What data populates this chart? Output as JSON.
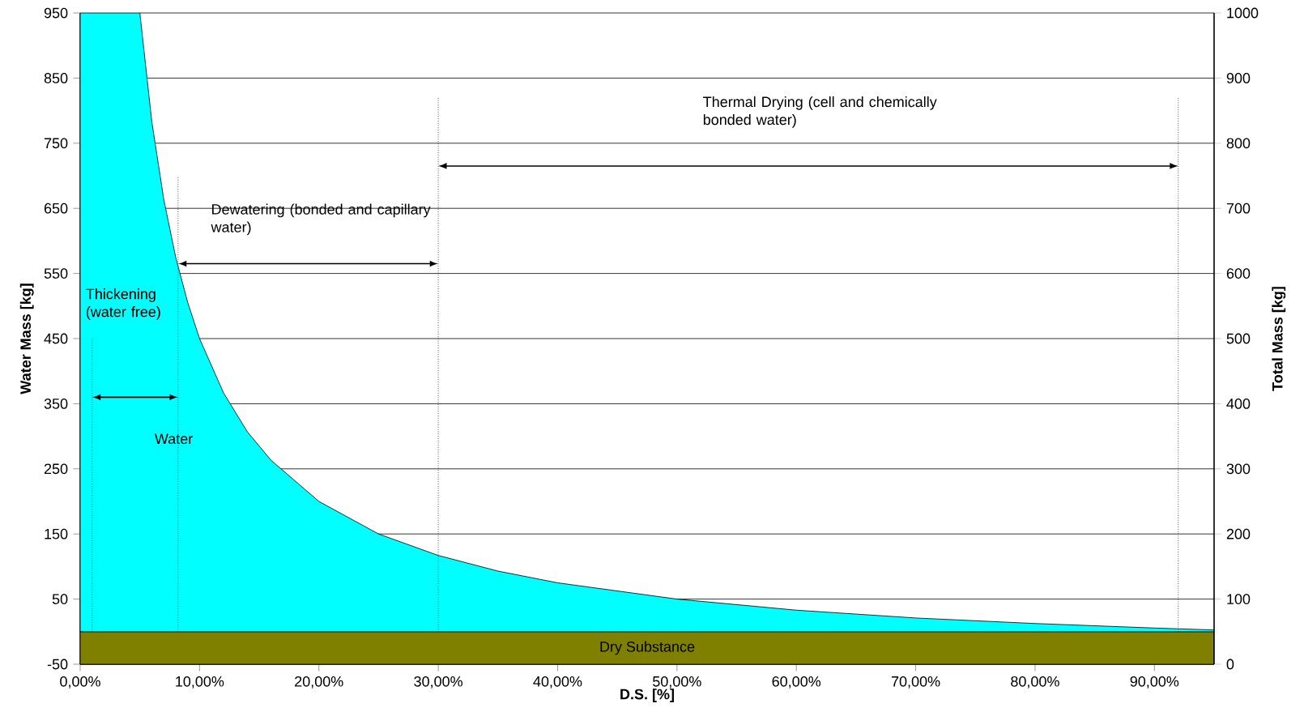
{
  "chart_data": {
    "type": "area",
    "xlabel": "D.S. [%]",
    "ylabel": "Water Mass [kg]",
    "y2label": "Total Mass [kg]",
    "x": [
      0,
      0.05,
      0.06,
      0.07,
      0.08,
      0.09,
      0.1,
      0.12,
      0.14,
      0.16,
      0.2,
      0.25,
      0.3,
      0.35,
      0.4,
      0.5,
      0.6,
      0.7,
      0.8,
      0.9,
      0.95
    ],
    "series": [
      {
        "name": "Water",
        "color": "#00ffff",
        "values": [
          950,
          950,
          783,
          664,
          575,
          506,
          450,
          367,
          307,
          263,
          200,
          150,
          117,
          93,
          75,
          50,
          33,
          21,
          12.5,
          5.6,
          2.6
        ]
      }
    ],
    "xlim": [
      0,
      0.95
    ],
    "xticks": [
      {
        "value": 0,
        "label": "0,00%"
      },
      {
        "value": 0.1,
        "label": "10,00%"
      },
      {
        "value": 0.2,
        "label": "20,00%"
      },
      {
        "value": 0.3,
        "label": "30,00%"
      },
      {
        "value": 0.4,
        "label": "40,00%"
      },
      {
        "value": 0.5,
        "label": "50,00%"
      },
      {
        "value": 0.6,
        "label": "60,00%"
      },
      {
        "value": 0.7,
        "label": "70,00%"
      },
      {
        "value": 0.8,
        "label": "80,00%"
      },
      {
        "value": 0.9,
        "label": "90,00%"
      }
    ],
    "ylim": [
      -50,
      950
    ],
    "yticks": [
      -50,
      50,
      150,
      250,
      350,
      450,
      550,
      650,
      750,
      850,
      950
    ],
    "y2lim": [
      0,
      1000
    ],
    "y2ticks": [
      0,
      100,
      200,
      300,
      400,
      500,
      600,
      700,
      800,
      900,
      1000
    ],
    "grid": "y",
    "bands": [
      {
        "axis": "y",
        "from": -50,
        "to": 0,
        "label": "Dry Substance",
        "color": "#808000"
      }
    ],
    "ref_lines": [
      {
        "axis": "x",
        "value": 0.01,
        "line_style": "dotted"
      },
      {
        "axis": "x",
        "value": 0.082,
        "line_style": "dotted"
      },
      {
        "axis": "x",
        "value": 0.3,
        "line_style": "dotted"
      },
      {
        "axis": "x",
        "value": 0.92,
        "line_style": "dotted"
      }
    ],
    "annotations": [
      "Thickening (water free)",
      "Dewatering (bonded and capillary water)",
      "Thermal Drying (cell and chemically bonded water)"
    ]
  }
}
